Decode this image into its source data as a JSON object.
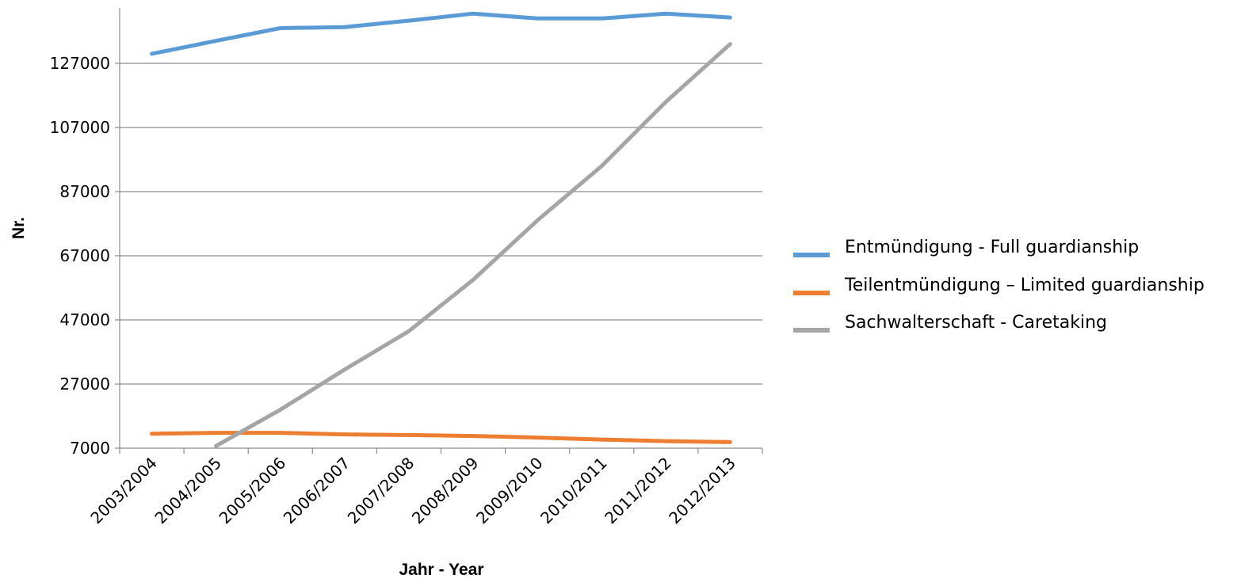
{
  "chart_data": {
    "type": "line",
    "title": "",
    "xlabel": "Jahr - Year",
    "ylabel": "Nr.",
    "ylim": [
      7000,
      147000
    ],
    "yticks": [
      7000,
      27000,
      47000,
      67000,
      87000,
      107000,
      127000
    ],
    "grid": "horizontal",
    "legend_position": "right",
    "categories": [
      "2003/2004",
      "2004/2005",
      "2005/2006",
      "2006/2007",
      "2007/2008",
      "2008/2009",
      "2009/2010",
      "2010/2011",
      "2011/2012",
      "2012/2013"
    ],
    "series": [
      {
        "name": "Entmündigung - Full guardianship",
        "color": "#5B9BD5",
        "values": [
          130000,
          134000,
          138000,
          138300,
          140300,
          142500,
          141000,
          141000,
          142500,
          141300
        ]
      },
      {
        "name": "Teilentmündigung – Limited guardianship",
        "color": "#ED7D31",
        "values": [
          11500,
          11800,
          11800,
          11300,
          11100,
          10800,
          10300,
          9700,
          9200,
          8900
        ]
      },
      {
        "name": "Sachwalterschaft - Caretaking",
        "color": "#A5A5A5",
        "values": [
          null,
          7700,
          19000,
          31500,
          43500,
          59500,
          78000,
          95000,
          115000,
          133000
        ]
      }
    ]
  }
}
